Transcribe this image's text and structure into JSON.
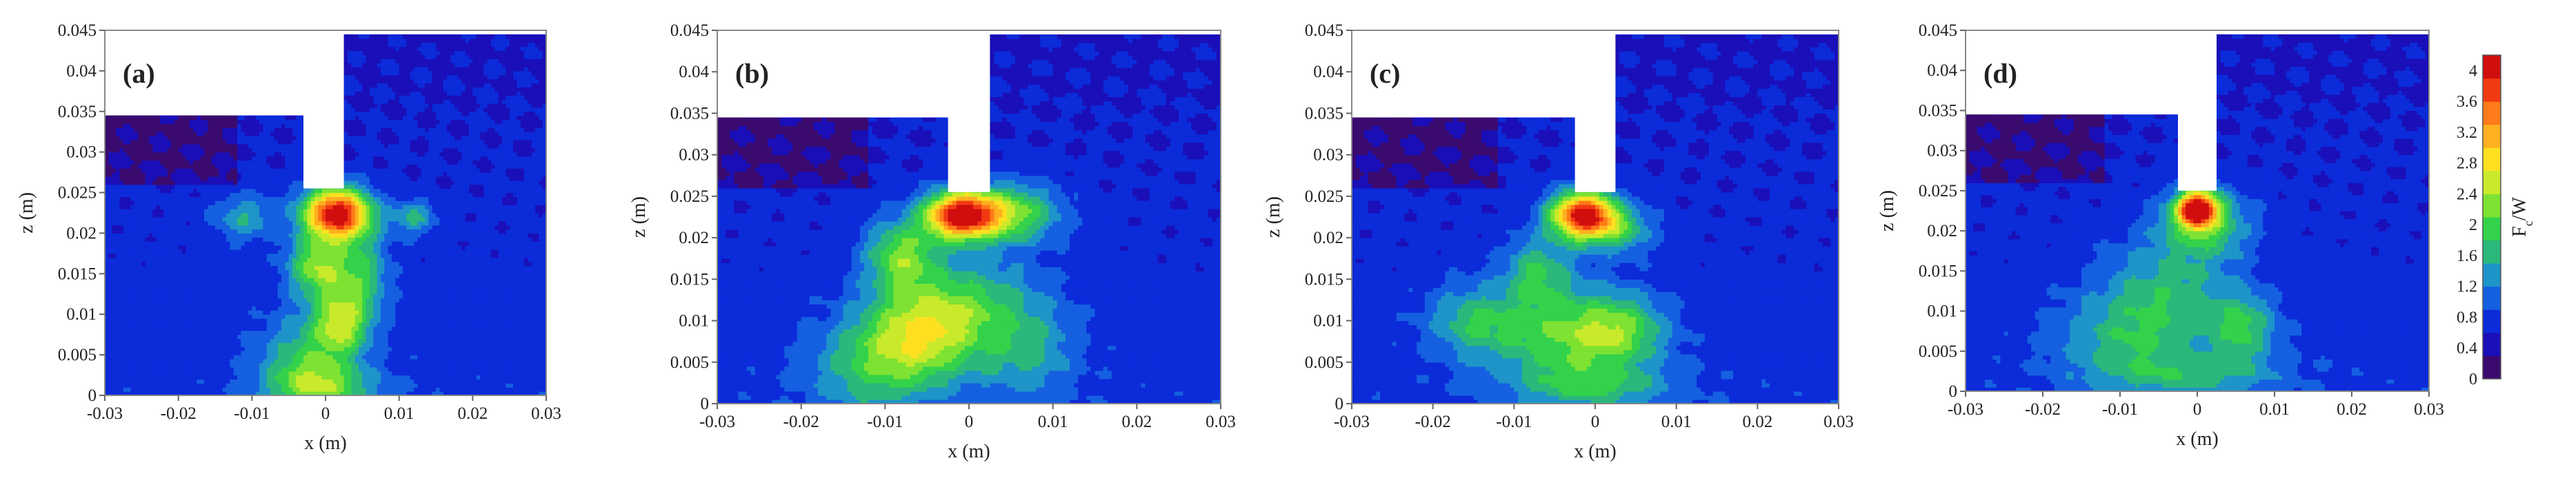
{
  "chart_data": {
    "type": "heatmap",
    "colorbar": {
      "label": "F",
      "label_sub": "c",
      "label_tail": "/W",
      "ticks": [
        "4",
        "3.6",
        "3.2",
        "2.8",
        "2.4",
        "2",
        "1.6",
        "1.2",
        "0.8",
        "0.4",
        "0"
      ],
      "range": [
        0,
        4.2
      ],
      "colors": [
        "#3a0a6e",
        "#1a0fb8",
        "#0c2bd9",
        "#1560e0",
        "#1e94c8",
        "#2bb87a",
        "#33d24a",
        "#7ee233",
        "#c8ea2a",
        "#ffe020",
        "#ffb020",
        "#ff7a18",
        "#f03a12",
        "#d00e0e"
      ]
    },
    "panels": [
      {
        "label": "(a)",
        "xlabel": "x (m)",
        "ylabel": "z (m)",
        "xlim": [
          -0.03,
          0.03
        ],
        "ylim": [
          0,
          0.045
        ],
        "xticks": [
          "-0.03",
          "-0.02",
          "-0.01",
          "0",
          "0.01",
          "0.02",
          "0.03"
        ],
        "yticks": [
          "0",
          "0.005",
          "0.01",
          "0.015",
          "0.02",
          "0.025",
          "0.03",
          "0.035",
          "0.04",
          "0.045"
        ],
        "geometry": {
          "left_top": 0.0345,
          "slot_x": [
            -0.003,
            0.0025
          ],
          "slot_bottom": 0.0255,
          "right_top": 0.0445
        },
        "hotspots": [
          {
            "x": 0.0015,
            "z": 0.0225,
            "amp": 3.5,
            "sx": 0.0032,
            "sz": 0.0022
          },
          {
            "x": -0.001,
            "z": 0.016,
            "amp": 1.6,
            "sx": 0.0028,
            "sz": 0.0026
          },
          {
            "x": 0.002,
            "z": 0.009,
            "amp": 1.6,
            "sx": 0.0026,
            "sz": 0.003
          },
          {
            "x": -0.003,
            "z": 0.004,
            "amp": 1.0,
            "sx": 0.004,
            "sz": 0.004
          },
          {
            "x": 0.005,
            "z": 0.015,
            "amp": 1.0,
            "sx": 0.0025,
            "sz": 0.004
          },
          {
            "x": 0.012,
            "z": 0.022,
            "amp": 0.9,
            "sx": 0.002,
            "sz": 0.0015
          },
          {
            "x": -0.011,
            "z": 0.022,
            "amp": 0.8,
            "sx": 0.003,
            "sz": 0.002
          },
          {
            "x": 0.0,
            "z": 0.001,
            "amp": 1.1,
            "sx": 0.005,
            "sz": 0.002
          }
        ]
      },
      {
        "label": "(b)",
        "xlabel": "x (m)",
        "ylabel": "z (m)",
        "xlim": [
          -0.03,
          0.03
        ],
        "ylim": [
          0,
          0.045
        ],
        "xticks": [
          "-0.03",
          "-0.02",
          "-0.01",
          "0",
          "0.01",
          "0.02",
          "0.03"
        ],
        "yticks": [
          "0",
          "0.005",
          "0.01",
          "0.015",
          "0.02",
          "0.025",
          "0.03",
          "0.035",
          "0.04",
          "0.045"
        ],
        "geometry": {
          "left_top": 0.0345,
          "slot_x": [
            -0.0025,
            0.0025
          ],
          "slot_bottom": 0.0255,
          "right_top": 0.0445
        },
        "hotspots": [
          {
            "x": -0.001,
            "z": 0.0228,
            "amp": 3.3,
            "sx": 0.003,
            "sz": 0.002
          },
          {
            "x": 0.005,
            "z": 0.023,
            "amp": 1.5,
            "sx": 0.004,
            "sz": 0.0025
          },
          {
            "x": -0.008,
            "z": 0.018,
            "amp": 1.4,
            "sx": 0.003,
            "sz": 0.003
          },
          {
            "x": -0.006,
            "z": 0.008,
            "amp": 1.5,
            "sx": 0.005,
            "sz": 0.004
          },
          {
            "x": 0.0,
            "z": 0.012,
            "amp": 1.0,
            "sx": 0.006,
            "sz": 0.004
          },
          {
            "x": -0.012,
            "z": 0.004,
            "amp": 0.8,
            "sx": 0.005,
            "sz": 0.004
          },
          {
            "x": 0.007,
            "z": 0.006,
            "amp": 0.7,
            "sx": 0.004,
            "sz": 0.004
          }
        ]
      },
      {
        "label": "(c)",
        "xlabel": "x (m)",
        "ylabel": "z (m)",
        "xlim": [
          -0.03,
          0.03
        ],
        "ylim": [
          0,
          0.045
        ],
        "xticks": [
          "-0.03",
          "-0.02",
          "-0.01",
          "0",
          "0.01",
          "0.02",
          "0.03"
        ],
        "yticks": [
          "0",
          "0.005",
          "0.01",
          "0.015",
          "0.02",
          "0.025",
          "0.03",
          "0.035",
          "0.04",
          "0.045"
        ],
        "geometry": {
          "left_top": 0.0345,
          "slot_x": [
            -0.0025,
            0.0025
          ],
          "slot_bottom": 0.0255,
          "right_top": 0.0445
        },
        "hotspots": [
          {
            "x": -0.0015,
            "z": 0.0228,
            "amp": 3.4,
            "sx": 0.0028,
            "sz": 0.002
          },
          {
            "x": 0.003,
            "z": 0.021,
            "amp": 1.0,
            "sx": 0.003,
            "sz": 0.002
          },
          {
            "x": -0.007,
            "z": 0.016,
            "amp": 1.0,
            "sx": 0.003,
            "sz": 0.003
          },
          {
            "x": -0.004,
            "z": 0.008,
            "amp": 1.2,
            "sx": 0.006,
            "sz": 0.004
          },
          {
            "x": 0.003,
            "z": 0.009,
            "amp": 1.1,
            "sx": 0.004,
            "sz": 0.003
          },
          {
            "x": -0.015,
            "z": 0.01,
            "amp": 0.9,
            "sx": 0.004,
            "sz": 0.003
          },
          {
            "x": 0.0,
            "z": 0.002,
            "amp": 0.8,
            "sx": 0.007,
            "sz": 0.002
          }
        ]
      },
      {
        "label": "(d)",
        "xlabel": "x (m)",
        "ylabel": "z (m)",
        "xlim": [
          -0.03,
          0.03
        ],
        "ylim": [
          0,
          0.045
        ],
        "xticks": [
          "-0.03",
          "-0.02",
          "-0.01",
          "0",
          "0.01",
          "0.02",
          "0.03"
        ],
        "yticks": [
          "0",
          "0.005",
          "0.01",
          "0.015",
          "0.02",
          "0.025",
          "0.03",
          "0.035",
          "0.04",
          "0.045"
        ],
        "geometry": {
          "left_top": 0.0345,
          "slot_x": [
            -0.0025,
            0.0025
          ],
          "slot_bottom": 0.025,
          "right_top": 0.0445
        },
        "hotspots": [
          {
            "x": 0.0,
            "z": 0.0228,
            "amp": 3.2,
            "sx": 0.0018,
            "sz": 0.0016
          },
          {
            "x": 0.001,
            "z": 0.021,
            "amp": 1.2,
            "sx": 0.004,
            "sz": 0.003
          },
          {
            "x": -0.004,
            "z": 0.012,
            "amp": 0.9,
            "sx": 0.006,
            "sz": 0.005
          },
          {
            "x": 0.006,
            "z": 0.008,
            "amp": 1.0,
            "sx": 0.003,
            "sz": 0.003
          },
          {
            "x": -0.01,
            "z": 0.006,
            "amp": 0.7,
            "sx": 0.006,
            "sz": 0.004
          },
          {
            "x": 0.0,
            "z": 0.002,
            "amp": 0.7,
            "sx": 0.008,
            "sz": 0.002
          }
        ]
      }
    ]
  }
}
